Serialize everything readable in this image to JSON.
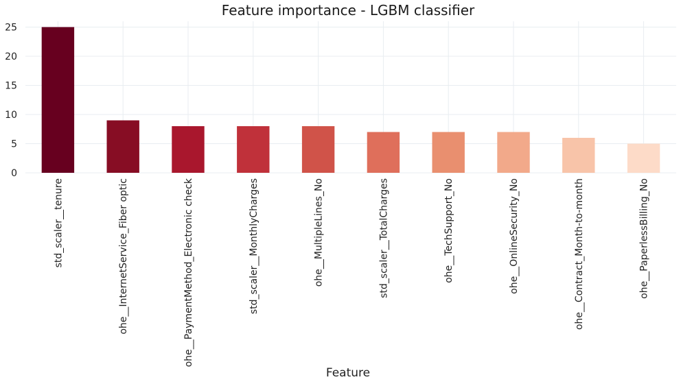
{
  "chart_data": {
    "type": "bar",
    "title": "Feature importance - LGBM classifier",
    "xlabel": "Feature",
    "ylabel": "",
    "categories": [
      "std_scaler__tenure",
      "ohe__InternetService_Fiber optic",
      "ohe__PaymentMethod_Electronic check",
      "std_scaler__MonthlyCharges",
      "ohe__MultipleLines_No",
      "std_scaler__TotalCharges",
      "ohe__TechSupport_No",
      "ohe__OnlineSecurity_No",
      "ohe__Contract_Month-to-month",
      "ohe__PaperlessBilling_No"
    ],
    "values": [
      25,
      9,
      8,
      8,
      8,
      7,
      7,
      7,
      6,
      5
    ],
    "bar_colors": [
      "#67001f",
      "#870d24",
      "#a9172d",
      "#c0313a",
      "#d05349",
      "#df6f5b",
      "#e98f6f",
      "#f2a98a",
      "#f8c4a9",
      "#fddbc8"
    ],
    "ylim": [
      0,
      26
    ],
    "yticks": [
      0,
      5,
      10,
      15,
      20,
      25
    ],
    "grid": true,
    "legend": "none"
  }
}
